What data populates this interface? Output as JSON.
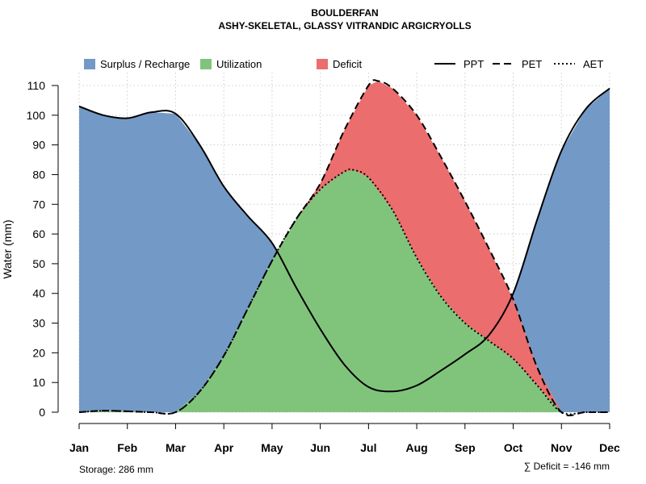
{
  "colors": {
    "surplus": "#7399c6",
    "utilization": "#80c47c",
    "deficit": "#eb6d6d",
    "grid": "#cccccc",
    "line": "#000000"
  },
  "chart_data": {
    "type": "area",
    "title": "BOULDERFAN",
    "subtitle": "ASHY-SKELETAL, GLASSY VITRANDIC ARGICRYOLLS",
    "xlabel": "",
    "ylabel": "Water (mm)",
    "ylim": [
      0,
      110
    ],
    "yticks": [
      0,
      10,
      20,
      30,
      40,
      50,
      60,
      70,
      80,
      90,
      100,
      110
    ],
    "grid": true,
    "categories": [
      "Jan",
      "Feb",
      "Mar",
      "Apr",
      "May",
      "Jun",
      "Jul",
      "Aug",
      "Sep",
      "Oct",
      "Nov",
      "Dec"
    ],
    "series": [
      {
        "name": "PPT",
        "style": "solid",
        "points": [
          [
            1,
            103
          ],
          [
            1.5,
            100
          ],
          [
            2,
            99
          ],
          [
            2.5,
            101
          ],
          [
            3,
            100.5
          ],
          [
            3.5,
            90
          ],
          [
            4,
            76
          ],
          [
            4.5,
            66
          ],
          [
            5,
            57
          ],
          [
            5.5,
            42
          ],
          [
            6,
            28
          ],
          [
            6.5,
            16
          ],
          [
            7,
            8.5
          ],
          [
            7.5,
            7
          ],
          [
            8,
            9
          ],
          [
            8.5,
            14
          ],
          [
            9,
            19.5
          ],
          [
            9.5,
            26
          ],
          [
            10,
            40
          ],
          [
            10.5,
            65
          ],
          [
            11,
            88
          ],
          [
            11.5,
            102
          ],
          [
            12,
            109
          ]
        ]
      },
      {
        "name": "PET",
        "style": "dashed",
        "points": [
          [
            1,
            0
          ],
          [
            1.5,
            0.5
          ],
          [
            2,
            0.3
          ],
          [
            2.5,
            0
          ],
          [
            3,
            0
          ],
          [
            3.5,
            7
          ],
          [
            4,
            19
          ],
          [
            4.5,
            35
          ],
          [
            5,
            51
          ],
          [
            5.5,
            65
          ],
          [
            6,
            77
          ],
          [
            6.5,
            95
          ],
          [
            7,
            110
          ],
          [
            7.2,
            111.5
          ],
          [
            7.5,
            109
          ],
          [
            8,
            100
          ],
          [
            8.5,
            86
          ],
          [
            9,
            71
          ],
          [
            9.5,
            55
          ],
          [
            10,
            38
          ],
          [
            10.5,
            15
          ],
          [
            11,
            0
          ],
          [
            11.5,
            0
          ],
          [
            12,
            0
          ]
        ]
      },
      {
        "name": "AET",
        "style": "dotted",
        "points": [
          [
            1,
            0
          ],
          [
            1.5,
            0.5
          ],
          [
            2,
            0.3
          ],
          [
            2.5,
            0
          ],
          [
            3,
            0
          ],
          [
            3.5,
            7
          ],
          [
            4,
            19
          ],
          [
            4.5,
            35
          ],
          [
            5,
            51
          ],
          [
            5.5,
            65
          ],
          [
            6,
            75
          ],
          [
            6.5,
            81
          ],
          [
            6.7,
            81.5
          ],
          [
            7,
            79
          ],
          [
            7.5,
            68
          ],
          [
            8,
            52
          ],
          [
            8.5,
            39
          ],
          [
            9,
            30
          ],
          [
            9.5,
            24
          ],
          [
            10,
            18
          ],
          [
            10.5,
            9
          ],
          [
            11,
            0
          ],
          [
            11.5,
            0
          ],
          [
            12,
            0
          ]
        ]
      }
    ],
    "areas": [
      "Surplus / Recharge",
      "Utilization",
      "Deficit"
    ],
    "legend": {
      "placement": "top",
      "items": [
        {
          "label": "Surplus / Recharge",
          "kind": "box",
          "color": "#7399c6"
        },
        {
          "label": "Utilization",
          "kind": "box",
          "color": "#80c47c"
        },
        {
          "label": "Deficit",
          "kind": "box",
          "color": "#eb6d6d"
        },
        {
          "label": "PPT",
          "kind": "line",
          "dash": "solid"
        },
        {
          "label": "PET",
          "kind": "line",
          "dash": "dashed"
        },
        {
          "label": "AET",
          "kind": "line",
          "dash": "dotted"
        }
      ]
    },
    "annotations": {
      "storage": "Storage: 286 mm",
      "deficit": "∑ Deficit = -146 mm"
    }
  }
}
